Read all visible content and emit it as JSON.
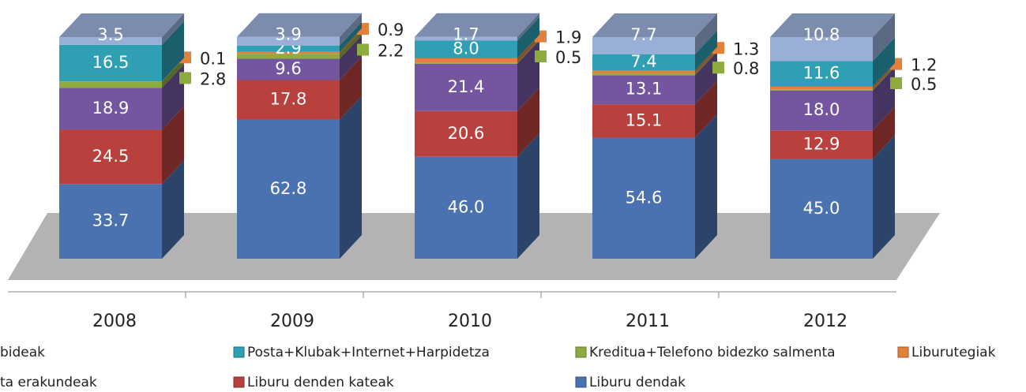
{
  "chart_data": {
    "type": "stacked_bar_3d",
    "categories": [
      "2008",
      "2009",
      "2010",
      "2011",
      "2012"
    ],
    "series": [
      {
        "name": "Liburu dendak",
        "color": "#4a72b0",
        "values": [
          33.7,
          62.8,
          46.0,
          54.6,
          45.0
        ],
        "value_labels": [
          "33.7",
          "62.8",
          "46.0",
          "54.6",
          "45.0"
        ]
      },
      {
        "name": "Liburu denden kateak",
        "color": "#b9413d",
        "values": [
          24.5,
          17.8,
          20.6,
          15.1,
          12.9
        ]
      },
      {
        "name": "ta erakundeak",
        "color": "#7456a0",
        "values": [
          18.9,
          9.6,
          21.4,
          13.1,
          18.0
        ],
        "value_labels": [
          "18.9",
          "9.6",
          "21.4",
          "13.1",
          "18.0"
        ]
      },
      {
        "name": "Kreditua+Telefono bidezko salmenta",
        "color": "#8eab3f",
        "values": [
          2.8,
          2.2,
          0.5,
          0.8,
          0.5
        ]
      },
      {
        "name": "Liburutegiak",
        "color": "#e3803a",
        "values": [
          0.1,
          0.9,
          1.9,
          1.3,
          1.2
        ]
      },
      {
        "name": "Posta+Klubak+Internet+Harpidetza",
        "color": "#2f9fb4",
        "values": [
          16.5,
          2.9,
          8.0,
          7.4,
          11.6
        ],
        "value_labels": [
          "16.5",
          "2.9",
          "8.0",
          "7.4",
          "11.6"
        ]
      },
      {
        "name": "bideak",
        "color": "#9aafd8",
        "values": [
          3.5,
          3.9,
          1.7,
          7.7,
          10.8
        ]
      }
    ]
  }
}
